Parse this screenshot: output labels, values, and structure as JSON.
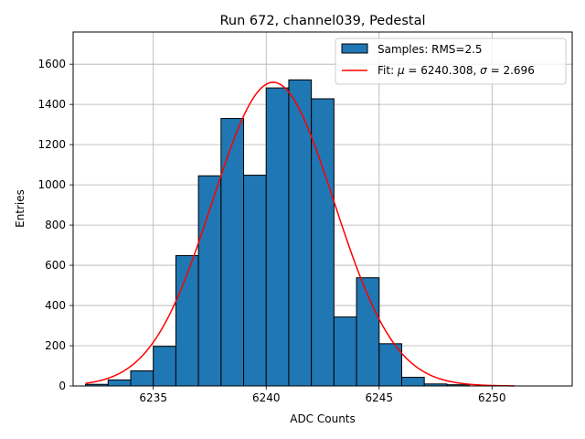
{
  "chart_data": {
    "type": "bar",
    "title": "Run 672, channel039, Pedestal",
    "xlabel": "ADC Counts",
    "ylabel": "Entries",
    "xlim": [
      6231.45,
      6253.55
    ],
    "ylim": [
      0,
      1760
    ],
    "xticks": [
      6235,
      6240,
      6245,
      6250
    ],
    "yticks": [
      0,
      200,
      400,
      600,
      800,
      1000,
      1200,
      1400,
      1600
    ],
    "grid": true,
    "legend_position": "top-right",
    "histogram": {
      "name": "Samples: RMS=2.5",
      "color": "#1f77b4",
      "edge_color": "#000000",
      "bin_edges": [
        6232,
        6233,
        6234,
        6235,
        6236,
        6237,
        6238,
        6239,
        6240,
        6241,
        6242,
        6243,
        6244,
        6245,
        6246,
        6247,
        6248,
        6249,
        6250
      ],
      "counts": [
        8,
        30,
        75,
        197,
        648,
        1045,
        1330,
        1048,
        1482,
        1522,
        1428,
        343,
        538,
        210,
        43,
        10,
        6,
        0
      ]
    },
    "fit": {
      "name_prefix": "Fit: ",
      "mu_value": "6240.308",
      "sigma_value": "2.696",
      "color": "#ff0000",
      "amplitude": 1510,
      "mu": 6240.308,
      "sigma": 2.696,
      "x_range": [
        6232,
        6251
      ]
    }
  }
}
